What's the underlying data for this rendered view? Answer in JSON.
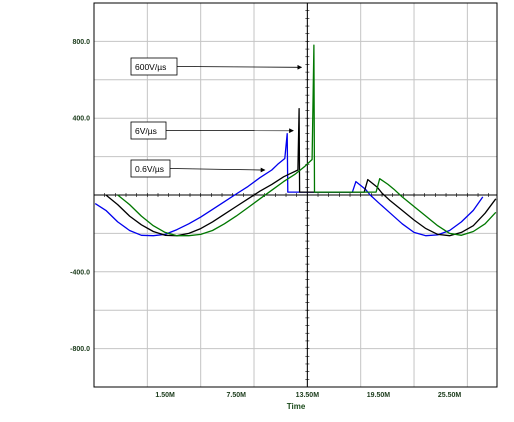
{
  "chart_data": {
    "type": "line",
    "xlabel": "Time",
    "xlim": [
      -4.5,
      29.5
    ],
    "ylim": [
      -1000,
      1000
    ],
    "x_ticks": [
      1.5,
      7.5,
      13.5,
      19.5,
      25.5
    ],
    "x_tick_labels": [
      "1.50M",
      "7.50M",
      "13.50M",
      "19.50M",
      "25.50M"
    ],
    "y_ticks": [
      800,
      400,
      -400,
      -800
    ],
    "y_tick_labels": [
      "800.0",
      "400.0",
      "-400.0",
      "-800.0"
    ],
    "grid": true,
    "annotations": [
      {
        "text": "600V/µs",
        "arrow_to": [
          13.0,
          665
        ]
      },
      {
        "text": "6V/µs",
        "arrow_to": [
          12.3,
          335
        ]
      },
      {
        "text": "0.6V/µs",
        "arrow_to": [
          9.9,
          130
        ]
      }
    ],
    "series": [
      {
        "color": "#0000ee",
        "points": [
          [
            -4.4,
            -45
          ],
          [
            -3.5,
            -80
          ],
          [
            -2.5,
            -140
          ],
          [
            -1.5,
            -185
          ],
          [
            -0.5,
            -210
          ],
          [
            0.5,
            -212
          ],
          [
            1.5,
            -205
          ],
          [
            2.5,
            -180
          ],
          [
            3.5,
            -150
          ],
          [
            4.5,
            -115
          ],
          [
            5.5,
            -75
          ],
          [
            6.5,
            -35
          ],
          [
            7.5,
            5
          ],
          [
            8.5,
            45
          ],
          [
            9.5,
            90
          ],
          [
            10.5,
            130
          ],
          [
            11.0,
            160
          ],
          [
            11.6,
            190
          ],
          [
            11.8,
            320
          ],
          [
            11.85,
            15
          ],
          [
            12.5,
            15
          ],
          [
            13.5,
            15
          ],
          [
            14.5,
            15
          ],
          [
            15.5,
            15
          ],
          [
            16.5,
            15
          ],
          [
            17.3,
            15
          ],
          [
            17.6,
            70
          ],
          [
            18.4,
            30
          ],
          [
            18.8,
            0
          ],
          [
            19.5,
            -40
          ],
          [
            20.5,
            -95
          ],
          [
            21.5,
            -150
          ],
          [
            22.5,
            -195
          ],
          [
            23.5,
            -212
          ],
          [
            24.5,
            -208
          ],
          [
            25.5,
            -185
          ],
          [
            26.5,
            -140
          ],
          [
            27.5,
            -80
          ],
          [
            28.3,
            -10
          ]
        ]
      },
      {
        "color": "#000000",
        "points": [
          [
            -3.5,
            0
          ],
          [
            -2.5,
            -50
          ],
          [
            -1.5,
            -110
          ],
          [
            -0.5,
            -155
          ],
          [
            0.5,
            -190
          ],
          [
            1.5,
            -210
          ],
          [
            2.5,
            -212
          ],
          [
            3.5,
            -200
          ],
          [
            4.5,
            -175
          ],
          [
            5.5,
            -140
          ],
          [
            6.5,
            -100
          ],
          [
            7.5,
            -60
          ],
          [
            8.5,
            -20
          ],
          [
            9.5,
            20
          ],
          [
            10.5,
            55
          ],
          [
            11.5,
            95
          ],
          [
            12.0,
            110
          ],
          [
            12.7,
            130
          ],
          [
            12.8,
            450
          ],
          [
            12.85,
            15
          ],
          [
            13.5,
            15
          ],
          [
            14.5,
            15
          ],
          [
            15.5,
            15
          ],
          [
            16.5,
            15
          ],
          [
            17.5,
            15
          ],
          [
            18.3,
            15
          ],
          [
            18.6,
            80
          ],
          [
            19.4,
            40
          ],
          [
            19.8,
            10
          ],
          [
            20.5,
            -30
          ],
          [
            21.5,
            -80
          ],
          [
            22.5,
            -130
          ],
          [
            23.5,
            -175
          ],
          [
            24.5,
            -205
          ],
          [
            25.5,
            -212
          ],
          [
            26.5,
            -195
          ],
          [
            27.5,
            -160
          ],
          [
            28.5,
            -95
          ],
          [
            29.4,
            -20
          ]
        ]
      },
      {
        "color": "#007700",
        "points": [
          [
            -2.5,
            0
          ],
          [
            -1.5,
            -50
          ],
          [
            -0.5,
            -110
          ],
          [
            0.5,
            -160
          ],
          [
            1.5,
            -195
          ],
          [
            2.5,
            -212
          ],
          [
            3.5,
            -212
          ],
          [
            4.5,
            -205
          ],
          [
            5.5,
            -185
          ],
          [
            6.5,
            -150
          ],
          [
            7.5,
            -110
          ],
          [
            8.5,
            -65
          ],
          [
            9.5,
            -20
          ],
          [
            10.5,
            25
          ],
          [
            11.5,
            70
          ],
          [
            12.5,
            110
          ],
          [
            13.3,
            150
          ],
          [
            13.9,
            185
          ],
          [
            14.05,
            780
          ],
          [
            14.1,
            15
          ],
          [
            14.5,
            15
          ],
          [
            15.5,
            15
          ],
          [
            16.5,
            15
          ],
          [
            17.5,
            15
          ],
          [
            18.5,
            15
          ],
          [
            19.3,
            15
          ],
          [
            19.6,
            85
          ],
          [
            20.3,
            55
          ],
          [
            20.8,
            30
          ],
          [
            21.5,
            -10
          ],
          [
            22.5,
            -60
          ],
          [
            23.5,
            -110
          ],
          [
            24.5,
            -160
          ],
          [
            25.5,
            -200
          ],
          [
            26.5,
            -210
          ],
          [
            27.5,
            -190
          ],
          [
            28.5,
            -150
          ],
          [
            29.4,
            -90
          ]
        ]
      }
    ]
  }
}
